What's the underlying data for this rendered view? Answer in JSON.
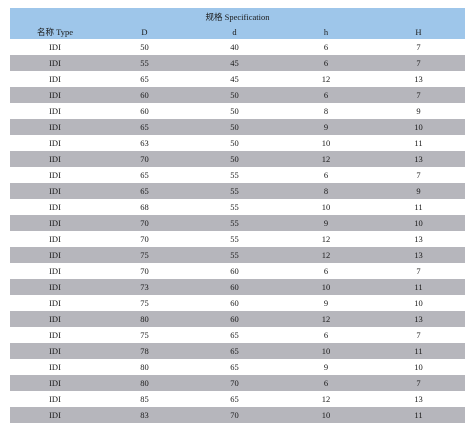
{
  "table": {
    "title": "规格 Specification",
    "headers": [
      "名称 Type",
      "D",
      "d",
      "h",
      "H"
    ],
    "rows": [
      [
        "IDI",
        "50",
        "40",
        "6",
        "7"
      ],
      [
        "IDI",
        "55",
        "45",
        "6",
        "7"
      ],
      [
        "IDI",
        "65",
        "45",
        "12",
        "13"
      ],
      [
        "IDI",
        "60",
        "50",
        "6",
        "7"
      ],
      [
        "IDI",
        "60",
        "50",
        "8",
        "9"
      ],
      [
        "IDI",
        "65",
        "50",
        "9",
        "10"
      ],
      [
        "IDI",
        "63",
        "50",
        "10",
        "11"
      ],
      [
        "IDI",
        "70",
        "50",
        "12",
        "13"
      ],
      [
        "IDI",
        "65",
        "55",
        "6",
        "7"
      ],
      [
        "IDI",
        "65",
        "55",
        "8",
        "9"
      ],
      [
        "IDI",
        "68",
        "55",
        "10",
        "11"
      ],
      [
        "IDI",
        "70",
        "55",
        "9",
        "10"
      ],
      [
        "IDI",
        "70",
        "55",
        "12",
        "13"
      ],
      [
        "IDI",
        "75",
        "55",
        "12",
        "13"
      ],
      [
        "IDI",
        "70",
        "60",
        "6",
        "7"
      ],
      [
        "IDI",
        "73",
        "60",
        "10",
        "11"
      ],
      [
        "IDI",
        "75",
        "60",
        "9",
        "10"
      ],
      [
        "IDI",
        "80",
        "60",
        "12",
        "13"
      ],
      [
        "IDI",
        "75",
        "65",
        "6",
        "7"
      ],
      [
        "IDI",
        "78",
        "65",
        "10",
        "11"
      ],
      [
        "IDI",
        "80",
        "65",
        "9",
        "10"
      ],
      [
        "IDI",
        "80",
        "70",
        "6",
        "7"
      ],
      [
        "IDI",
        "85",
        "65",
        "12",
        "13"
      ],
      [
        "IDI",
        "83",
        "70",
        "10",
        "11"
      ]
    ]
  }
}
